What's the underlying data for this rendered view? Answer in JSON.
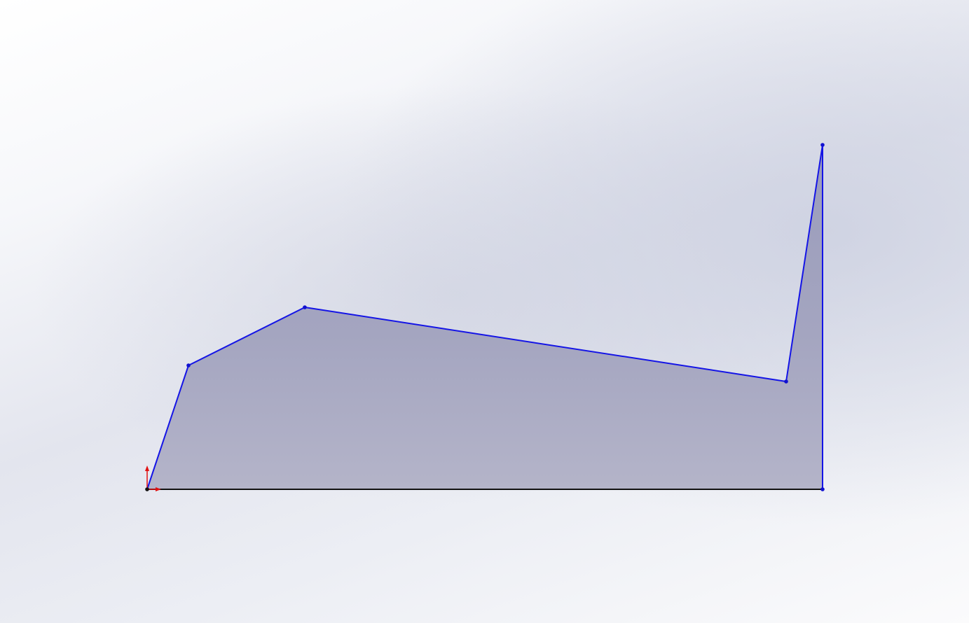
{
  "colors": {
    "sketch_line": "#1414e6",
    "base_line": "#111111",
    "vertex": "#1010d0",
    "fill_top": "#9a9cbb",
    "fill_bottom": "#b4b4c9",
    "origin_axis": "#e01010"
  },
  "icons": {
    "origin": "origin-triad-icon"
  }
}
